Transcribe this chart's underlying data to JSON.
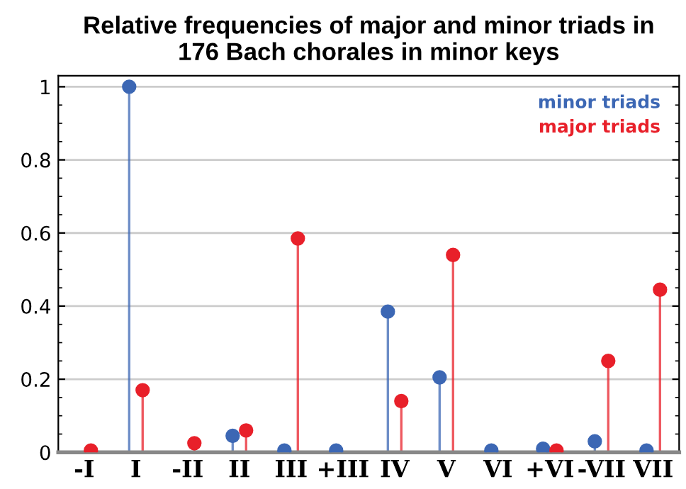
{
  "chart_data": {
    "type": "lollipop",
    "title": "Relative frequencies of major and minor triads in\n176 Bach chorales in minor keys",
    "categories": [
      "-I",
      "I",
      "-II",
      "II",
      "III",
      "+III",
      "IV",
      "V",
      "VI",
      "+VI",
      "-VII",
      "VII"
    ],
    "series": [
      {
        "name": "minor triads",
        "color": "#3c67b4",
        "values": [
          null,
          1.0,
          null,
          0.045,
          0.005,
          0.005,
          0.385,
          0.205,
          0.005,
          0.01,
          0.03,
          0.005
        ]
      },
      {
        "name": "major triads",
        "color": "#e8202a",
        "values": [
          0.005,
          0.17,
          0.025,
          0.06,
          0.585,
          null,
          0.14,
          0.54,
          null,
          0.005,
          0.25,
          0.445
        ]
      }
    ],
    "ylim": [
      0,
      1.03
    ],
    "yticks": [
      0,
      0.2,
      0.4,
      0.6,
      0.8,
      1
    ],
    "grid": "y",
    "legend": "top right",
    "marker": "circle"
  }
}
